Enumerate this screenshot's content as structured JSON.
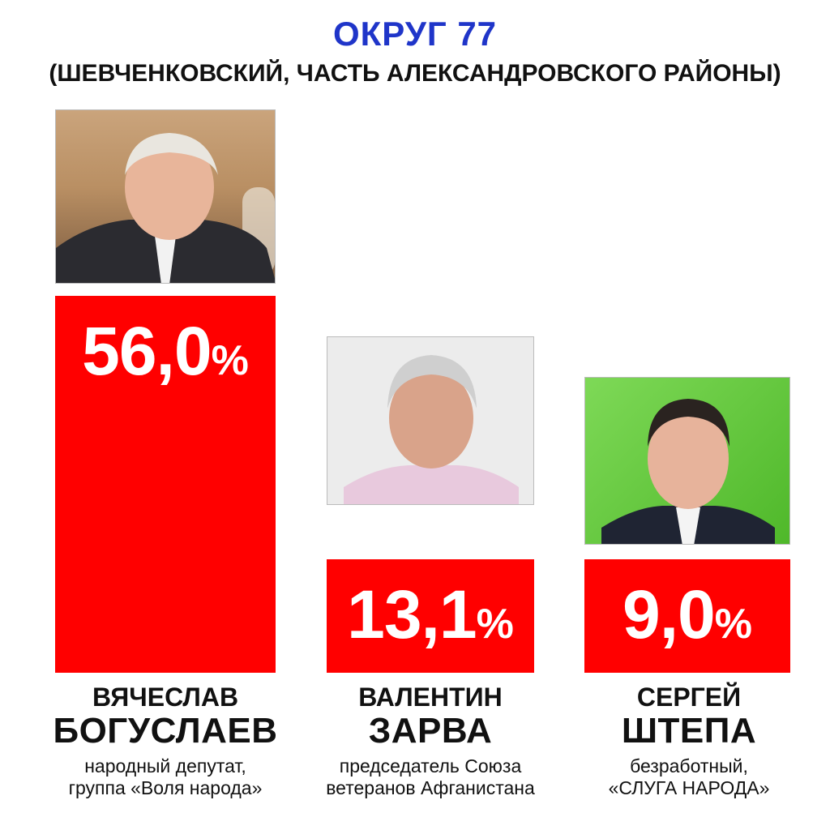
{
  "header": {
    "title": "ОКРУГ 77",
    "subtitle": "(ШЕВЧЕНКОВСКИЙ, ЧАСТЬ АЛЕКСАНДРОВСКОГО РАЙОНЫ)"
  },
  "colors": {
    "title": "#1f35c9",
    "bar": "#ff0000",
    "text": "#111111",
    "bar_label": "#ffffff"
  },
  "chart_data": {
    "type": "bar",
    "title": "ОКРУГ 77",
    "subtitle": "(ШЕВЧЕНКОВСКИЙ, ЧАСТЬ АЛЕКСАНДРОВСКОГО РАЙОНЫ)",
    "categories": [
      "ВЯЧЕСЛАВ БОГУСЛАЕВ",
      "ВАЛЕНТИН ЗАРВА",
      "СЕРГЕЙ ШТЕПА"
    ],
    "values": [
      56.0,
      13.1,
      9.0
    ],
    "unit": "%",
    "value_labels": [
      "56,0",
      "13,1",
      "9,0"
    ],
    "percent_sign": "%",
    "xlabel": "",
    "ylabel": "",
    "grid": false,
    "legend": "none"
  },
  "candidates": [
    {
      "first_name": "ВЯЧЕСЛАВ",
      "last_name": "БОГУСЛАЕВ",
      "desc_line1": "народный депутат,",
      "desc_line2": "группа «Воля народа»",
      "photo_icon": "candidate-photo-icon"
    },
    {
      "first_name": "ВАЛЕНТИН",
      "last_name": "ЗАРВА",
      "desc_line1": "председатель Союза",
      "desc_line2": "ветеранов Афганистана",
      "photo_icon": "candidate-photo-icon"
    },
    {
      "first_name": "СЕРГЕЙ",
      "last_name": "ШТЕПА",
      "desc_line1": "безработный,",
      "desc_line2": "«СЛУГА НАРОДА»",
      "photo_icon": "candidate-photo-icon"
    }
  ]
}
